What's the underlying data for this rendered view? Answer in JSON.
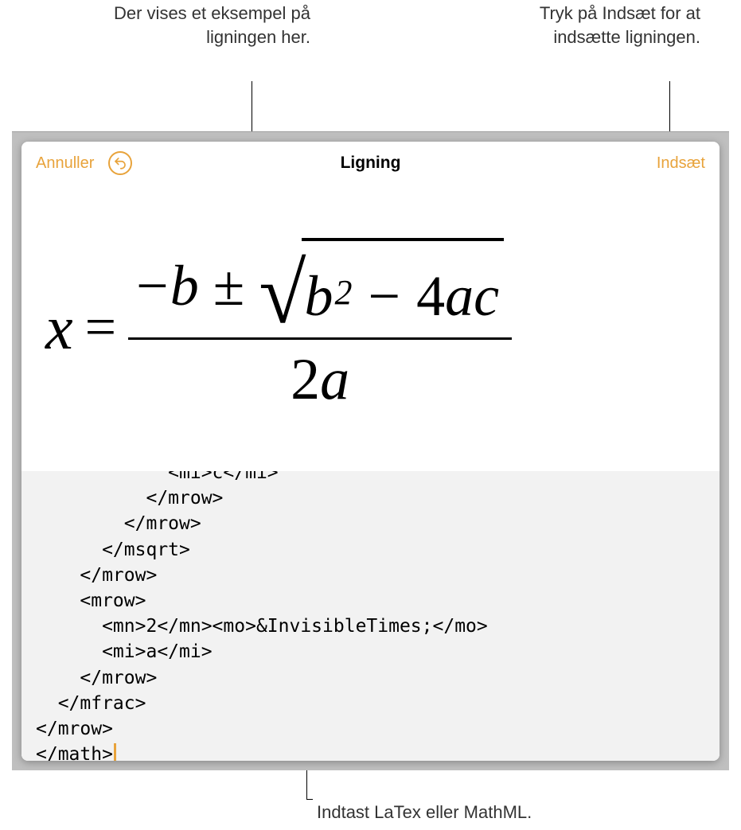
{
  "callouts": {
    "preview": "Der vises et eksempel på ligningen her.",
    "insert": "Tryk på Indsæt for at indsætte ligningen.",
    "input_hint": "Indtast LaTex eller MathML."
  },
  "toolbar": {
    "cancel_label": "Annuller",
    "title": "Ligning",
    "insert_label": "Indsæt",
    "undo_icon_name": "undo-icon"
  },
  "equation": {
    "tokens": {
      "x": "x",
      "eq": "=",
      "neg": "−",
      "b": "b",
      "pm": "±",
      "b2": "b",
      "sup2": "2",
      "minus": "−",
      "four": "4",
      "a": "a",
      "c": "c",
      "two": "2",
      "a2": "a"
    }
  },
  "code_lines": [
    "            <mi>c</mi>",
    "          </mrow>",
    "        </mrow>",
    "      </msqrt>",
    "    </mrow>",
    "    <mrow>",
    "      <mn>2</mn><mo>&InvisibleTimes;</mo>",
    "      <mi>a</mi>",
    "    </mrow>",
    "  </mfrac>",
    "</mrow>",
    "</math>"
  ],
  "colors": {
    "accent": "#e8a33b",
    "frame_bg": "#bfbfbf",
    "code_bg": "#f2f2f2"
  }
}
